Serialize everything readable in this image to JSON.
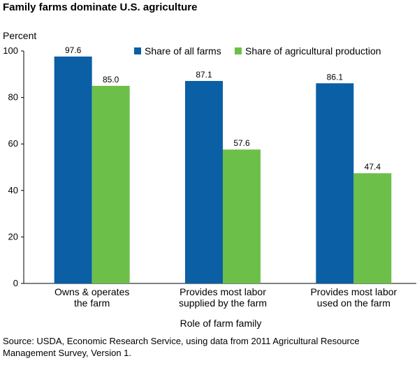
{
  "title": "Family farms dominate U.S. agriculture",
  "source": "Source: USDA, Economic Research Service, using data from 2011 Agricultural Resource Management Survey, Version 1.",
  "chart_data": {
    "type": "bar",
    "title": "Family farms dominate U.S. agriculture",
    "ylabel": "Percent",
    "xlabel": "Role of farm family",
    "ylim": [
      0,
      100
    ],
    "yticks": [
      0,
      20,
      40,
      60,
      80,
      100
    ],
    "categories": [
      [
        "Owns & operates",
        "the farm"
      ],
      [
        "Provides most labor",
        "supplied by the farm"
      ],
      [
        "Provides most labor",
        "used on the farm"
      ]
    ],
    "series": [
      {
        "name": "Share of all farms",
        "color": "#0b5fa5",
        "values": [
          97.6,
          87.1,
          86.1
        ],
        "labels": [
          "97.6",
          "87.1",
          "86.1"
        ]
      },
      {
        "name": "Share of agricultural production",
        "color": "#6cc04a",
        "values": [
          85.0,
          57.6,
          47.4
        ],
        "labels": [
          "85.0",
          "57.6",
          "47.4"
        ]
      }
    ],
    "grid": false,
    "legend": "top-right"
  }
}
